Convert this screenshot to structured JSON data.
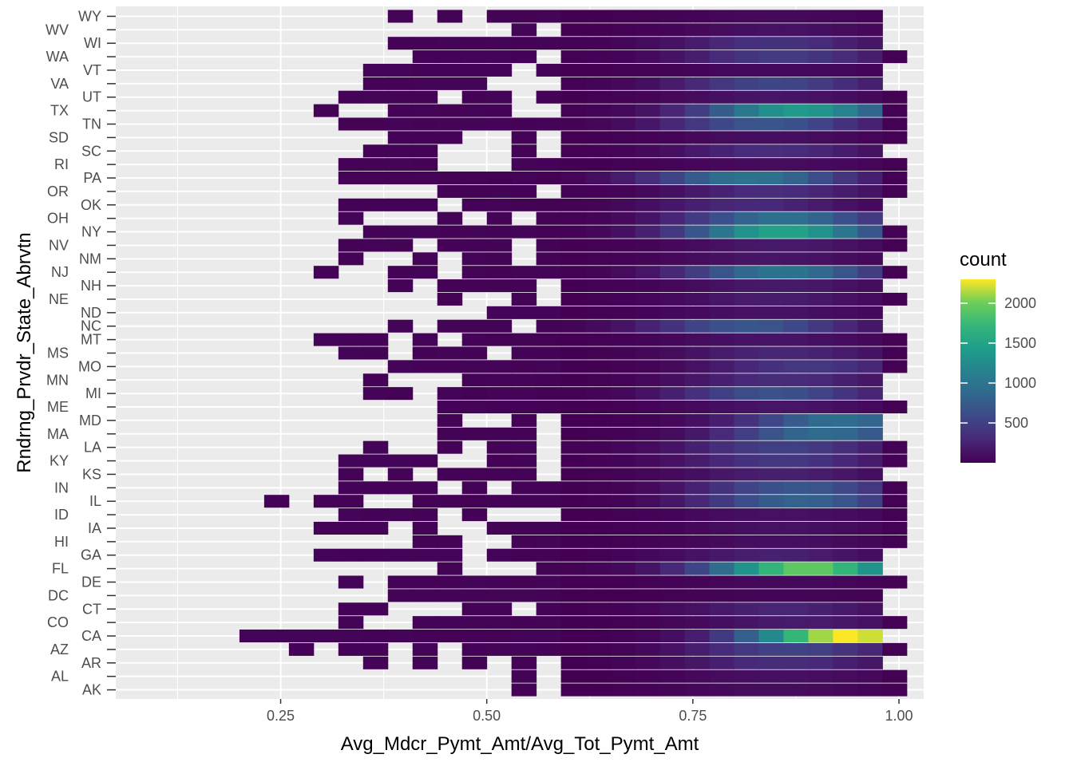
{
  "chart_data": {
    "type": "heatmap",
    "xlabel": "Avg_Mdcr_Pymt_Amt/Avg_Tot_Pymt_Amt",
    "ylabel": "Rndrng_Prvdr_State_Abrvtn",
    "xlim": [
      0.05,
      1.03
    ],
    "x_ticks": [
      {
        "value": 0.25,
        "label": "0.25"
      },
      {
        "value": 0.5,
        "label": "0.50"
      },
      {
        "value": 0.75,
        "label": "0.75"
      },
      {
        "value": 1.0,
        "label": "1.00"
      }
    ],
    "bin_width": 0.03,
    "colormap": "viridis",
    "colors": {
      "panel": "#ebebeb",
      "grid": "#ffffff",
      "empty": "#ebebeb",
      "viridis_low": "#440154",
      "viridis_mid": "#21908d",
      "viridis_high": "#fde725"
    },
    "legend": {
      "title": "count",
      "placement": "right",
      "range": [
        1,
        2300
      ],
      "breaks": [
        500,
        1000,
        1500,
        2000
      ]
    },
    "grid": true,
    "rows_left": [
      "AK",
      "AR",
      "CA",
      "CT",
      "DE",
      "GA",
      "IA",
      "IL",
      "KS",
      "LA",
      "MD",
      "MI",
      "MO",
      "MT",
      "NC",
      "ND",
      "NH",
      "NM",
      "NY",
      "OK",
      "PA",
      "SC",
      "TN",
      "UT",
      "VT",
      "WI",
      "WY"
    ],
    "rows_right": [
      "AL",
      "AZ",
      "CO",
      "DC",
      "FL",
      "HI",
      "ID",
      "IN",
      "KY",
      "MA",
      "ME",
      "MN",
      "MS",
      "NE",
      "NJ",
      "NV",
      "OH",
      "OR",
      "RI",
      "SD",
      "TX",
      "VA",
      "WA",
      "WV"
    ],
    "row_profiles": {
      "AK": {
        "start": 0.46,
        "peak": 0.85,
        "max": 80
      },
      "AR": {
        "start": 0.34,
        "peak": 0.86,
        "max": 330
      },
      "CA": {
        "start": 0.16,
        "peak": 0.94,
        "max": 2300
      },
      "CT": {
        "start": 0.31,
        "peak": 0.86,
        "max": 260
      },
      "DE": {
        "start": 0.31,
        "peak": 0.86,
        "max": 60
      },
      "GA": {
        "start": 0.25,
        "peak": 0.85,
        "max": 230
      },
      "IA": {
        "start": 0.28,
        "peak": 0.86,
        "max": 120
      },
      "IL": {
        "start": 0.22,
        "peak": 0.88,
        "max": 820
      },
      "KS": {
        "start": 0.26,
        "peak": 0.86,
        "max": 230
      },
      "LA": {
        "start": 0.31,
        "peak": 0.86,
        "max": 500
      },
      "MD": {
        "start": 0.42,
        "peak": 0.93,
        "max": 920
      },
      "MI": {
        "start": 0.31,
        "peak": 0.85,
        "max": 650
      },
      "MO": {
        "start": 0.34,
        "peak": 0.89,
        "max": 420
      },
      "MT": {
        "start": 0.29,
        "peak": 0.85,
        "max": 140
      },
      "NC": {
        "start": 0.39,
        "peak": 0.82,
        "max": 700
      },
      "ND": {
        "start": 0.39,
        "peak": 0.85,
        "max": 130
      },
      "NH": {
        "start": 0.39,
        "peak": 0.86,
        "max": 180
      },
      "NM": {
        "start": 0.31,
        "peak": 0.85,
        "max": 150
      },
      "NY": {
        "start": 0.33,
        "peak": 0.86,
        "max": 1500
      },
      "OK": {
        "start": 0.32,
        "peak": 0.82,
        "max": 300
      },
      "PA": {
        "start": 0.31,
        "peak": 0.82,
        "max": 1000
      },
      "SC": {
        "start": 0.34,
        "peak": 0.85,
        "max": 330
      },
      "TN": {
        "start": 0.28,
        "peak": 0.84,
        "max": 700
      },
      "UT": {
        "start": 0.31,
        "peak": 0.85,
        "max": 150
      },
      "VT": {
        "start": 0.34,
        "peak": 0.85,
        "max": 60
      },
      "WI": {
        "start": 0.34,
        "peak": 0.85,
        "max": 380
      },
      "WY": {
        "start": 0.39,
        "peak": 0.85,
        "max": 60
      },
      "AL": {
        "start": 0.43,
        "peak": 0.86,
        "max": 110
      },
      "AZ": {
        "start": 0.25,
        "peak": 0.87,
        "max": 520
      },
      "CO": {
        "start": 0.31,
        "peak": 0.88,
        "max": 190
      },
      "DC": {
        "start": 0.37,
        "peak": 0.86,
        "max": 30
      },
      "FL": {
        "start": 0.31,
        "peak": 0.89,
        "max": 1950
      },
      "HI": {
        "start": 0.28,
        "peak": 0.86,
        "max": 100
      },
      "ID": {
        "start": 0.31,
        "peak": 0.86,
        "max": 120
      },
      "IN": {
        "start": 0.25,
        "peak": 0.88,
        "max": 700
      },
      "KY": {
        "start": 0.31,
        "peak": 0.86,
        "max": 420
      },
      "MA": {
        "start": 0.43,
        "peak": 0.91,
        "max": 900
      },
      "ME": {
        "start": 0.43,
        "peak": 0.86,
        "max": 150
      },
      "MN": {
        "start": 0.34,
        "peak": 0.86,
        "max": 330
      },
      "MS": {
        "start": 0.31,
        "peak": 0.86,
        "max": 280
      },
      "NE": {
        "start": 0.39,
        "peak": 0.85,
        "max": 200
      },
      "NJ": {
        "start": 0.28,
        "peak": 0.86,
        "max": 1000
      },
      "NV": {
        "start": 0.33,
        "peak": 0.86,
        "max": 180
      },
      "OH": {
        "start": 0.33,
        "peak": 0.86,
        "max": 950
      },
      "OR": {
        "start": 0.42,
        "peak": 0.85,
        "max": 330
      },
      "RI": {
        "start": 0.31,
        "peak": 0.86,
        "max": 80
      },
      "SD": {
        "start": 0.34,
        "peak": 0.85,
        "max": 100
      },
      "TX": {
        "start": 0.25,
        "peak": 0.88,
        "max": 1400
      },
      "VA": {
        "start": 0.34,
        "peak": 0.85,
        "max": 550
      },
      "WA": {
        "start": 0.34,
        "peak": 0.86,
        "max": 450
      },
      "WV": {
        "start": 0.39,
        "peak": 0.86,
        "max": 120
      }
    }
  }
}
